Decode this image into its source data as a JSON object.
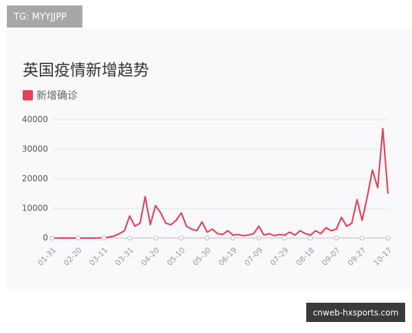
{
  "watermarks": {
    "top": "TG: MYYJJPP",
    "bottom": "cnweb-hxsports.com"
  },
  "chart_data": {
    "type": "line",
    "title": "英国疫情新增趋势",
    "categories": [
      "01-31",
      null,
      null,
      null,
      null,
      "02-20",
      null,
      null,
      null,
      null,
      "03-11",
      null,
      null,
      null,
      null,
      "03-31",
      null,
      null,
      null,
      null,
      "04-20",
      null,
      null,
      null,
      null,
      "05-10",
      null,
      null,
      null,
      null,
      "05-30",
      null,
      null,
      null,
      null,
      "06-19",
      null,
      null,
      null,
      null,
      "07-09",
      null,
      null,
      null,
      null,
      "07-29",
      null,
      null,
      null,
      null,
      "08-18",
      null,
      null,
      null,
      null,
      "09-07",
      null,
      null,
      null,
      null,
      "09-27",
      null,
      null,
      null,
      null,
      "10-17"
    ],
    "series": [
      {
        "name": "新增确诊",
        "color": "#e5405a",
        "values": [
          0,
          0,
          0,
          0,
          0,
          0,
          0,
          0,
          10,
          50,
          100,
          300,
          700,
          1500,
          2500,
          7500,
          4000,
          5000,
          14000,
          4500,
          11000,
          8500,
          5000,
          4500,
          6000,
          8500,
          4000,
          3000,
          2500,
          5500,
          2000,
          3000,
          1500,
          1200,
          2500,
          1000,
          1200,
          800,
          1000,
          1500,
          4000,
          1000,
          1500,
          800,
          1200,
          1000,
          2000,
          1000,
          2500,
          1500,
          1000,
          2500,
          1500,
          3500,
          2500,
          3000,
          7000,
          4000,
          5000,
          13000,
          6000,
          14000,
          23000,
          17000,
          37000,
          15000
        ]
      }
    ],
    "ylim": [
      0,
      40000
    ],
    "yticks": [
      0,
      10000,
      20000,
      30000,
      40000
    ],
    "grid": true
  }
}
